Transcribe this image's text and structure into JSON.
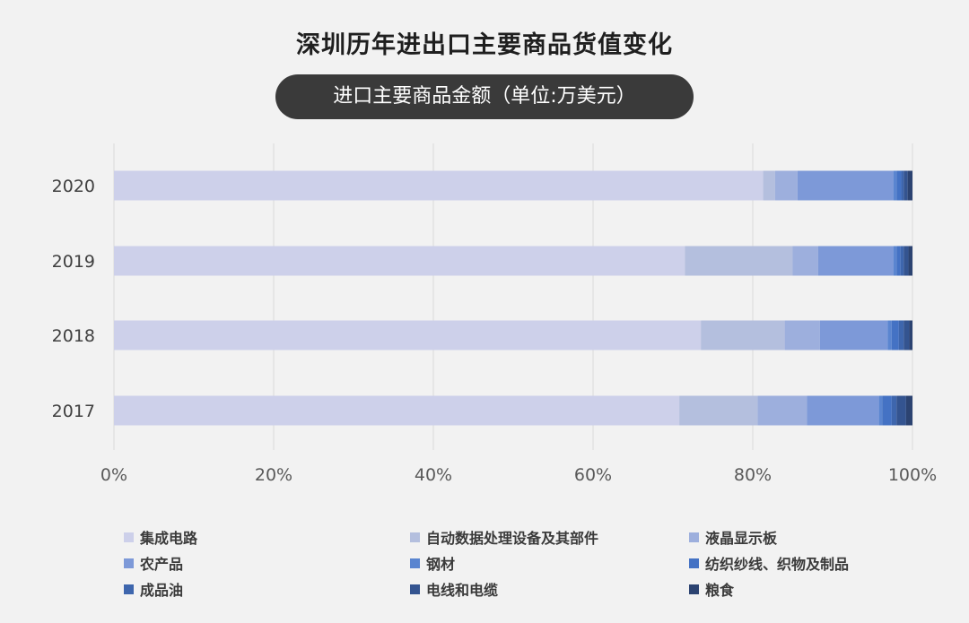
{
  "header": {
    "title": "深圳历年进出口主要商品货值变化",
    "subtitle": "进口主要商品金额（单位:万美元）"
  },
  "chart_data": {
    "type": "bar",
    "orientation": "horizontal",
    "stacked": "percent",
    "categories": [
      "2020",
      "2019",
      "2018",
      "2017"
    ],
    "xlim": [
      0,
      100
    ],
    "x_ticks": [
      "0%",
      "20%",
      "40%",
      "60%",
      "80%",
      "100%"
    ],
    "grid": true,
    "legend_position": "bottom",
    "series": [
      {
        "name": "集成电路",
        "color": "#cdd0ea",
        "values": [
          81.3,
          71.5,
          73.5,
          70.8
        ]
      },
      {
        "name": "自动数据处理设备及其部件",
        "color": "#b4bfde",
        "values": [
          1.5,
          13.5,
          10.5,
          9.8
        ]
      },
      {
        "name": "液晶显示板",
        "color": "#9dafdd",
        "values": [
          2.8,
          3.2,
          4.4,
          6.2
        ]
      },
      {
        "name": "农产品",
        "color": "#7d99d8",
        "values": [
          12.0,
          9.4,
          8.5,
          9.0
        ]
      },
      {
        "name": "钢材",
        "color": "#5a85d0",
        "values": [
          0.4,
          0.4,
          0.5,
          0.4
        ]
      },
      {
        "name": "纺织纱线、织物及制品",
        "color": "#4472c4",
        "values": [
          0.6,
          0.5,
          0.9,
          1.2
        ]
      },
      {
        "name": "成品油",
        "color": "#3e66ad",
        "values": [
          0.3,
          0.4,
          0.6,
          0.6
        ]
      },
      {
        "name": "电线和电缆",
        "color": "#345490",
        "values": [
          0.5,
          0.6,
          0.7,
          1.2
        ]
      },
      {
        "name": "粮食",
        "color": "#2c4371",
        "values": [
          0.6,
          0.5,
          0.4,
          0.8
        ]
      }
    ]
  }
}
